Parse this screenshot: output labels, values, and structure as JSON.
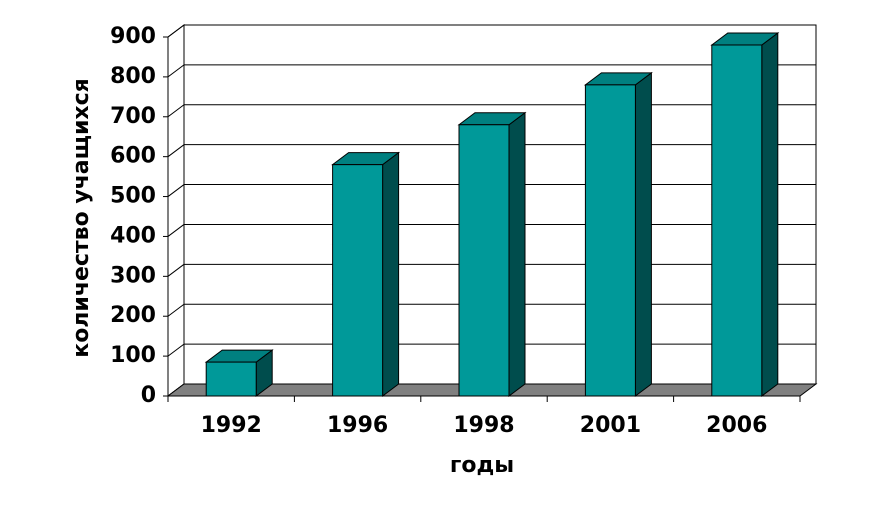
{
  "chart_data": {
    "type": "bar3d",
    "x_label": "годы",
    "y_label": "количество учащихся",
    "categories": [
      "1992",
      "1996",
      "1998",
      "2001",
      "2006"
    ],
    "values": [
      85,
      580,
      680,
      780,
      880
    ],
    "color": "#009999",
    "ylim": [
      0,
      900
    ],
    "yticks": [
      0,
      100,
      200,
      300,
      400,
      500,
      600,
      700,
      800,
      900
    ],
    "grid": true
  }
}
